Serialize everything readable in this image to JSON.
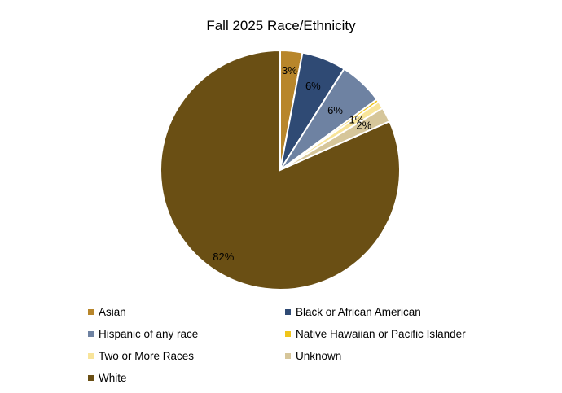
{
  "chart_data": {
    "type": "pie",
    "title": "Fall 2025 Race/Ethnicity",
    "slices": [
      {
        "name": "Asian",
        "value": 3,
        "label": "3%",
        "color": "#B8862B"
      },
      {
        "name": "Black or African American",
        "value": 6,
        "label": "6%",
        "color": "#2F4A74"
      },
      {
        "name": "Hispanic of any race",
        "value": 6,
        "label": "6%",
        "color": "#6E82A2"
      },
      {
        "name": "Native Hawaiian or Pacific Islander",
        "value": 0,
        "label": "",
        "color": "#F0C51A"
      },
      {
        "name": "Two or More Races",
        "value": 1,
        "label": "1%",
        "color": "#F8E49A"
      },
      {
        "name": "Unknown",
        "value": 2,
        "label": "2%",
        "color": "#D6C69A"
      },
      {
        "name": "White",
        "value": 82,
        "label": "82%",
        "color": "#6A4F14"
      }
    ],
    "legend_position": "bottom"
  }
}
